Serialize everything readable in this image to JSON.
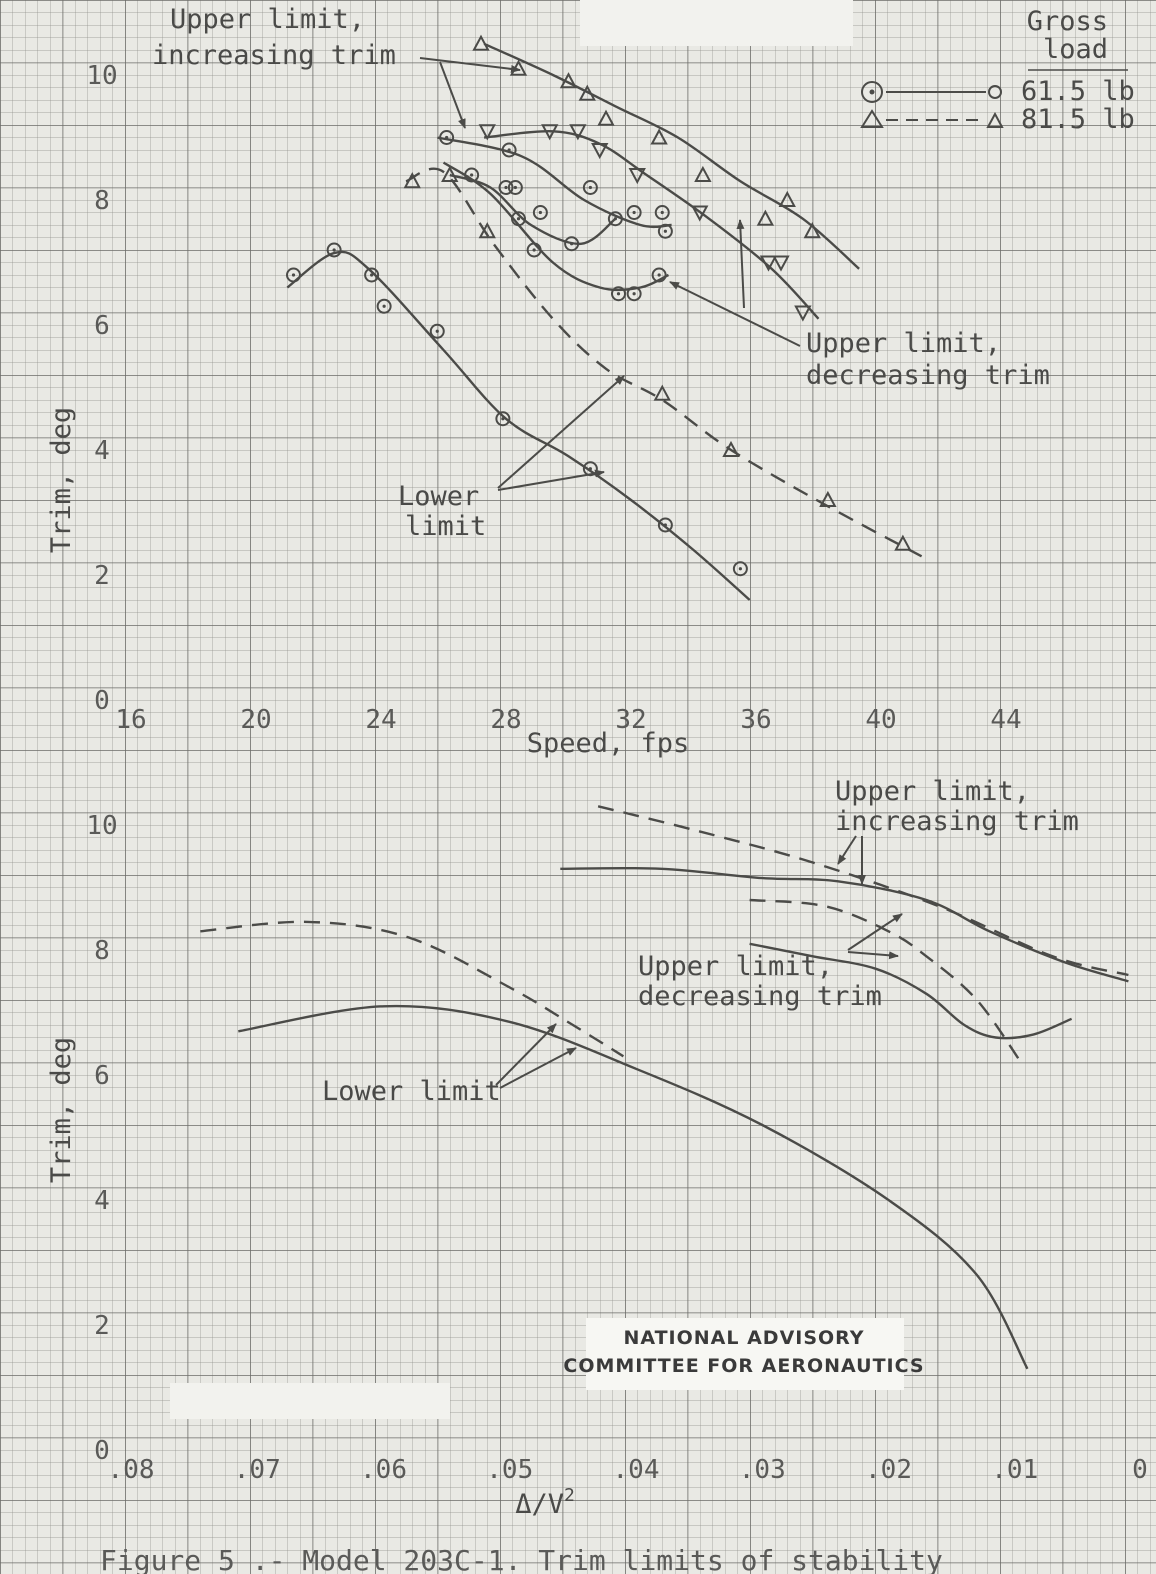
{
  "chart_data": [
    {
      "type": "scatter",
      "xlabel": "Speed, fps",
      "ylabel": "Trim, deg",
      "xlim": [
        16,
        47
      ],
      "ylim": [
        0,
        10.6
      ],
      "xticks": [
        "16",
        "20",
        "24",
        "28",
        "32",
        "36",
        "40",
        "44"
      ],
      "yticks": [
        "0",
        "2",
        "4",
        "6",
        "8",
        "10"
      ],
      "legend": {
        "title": "Gross load",
        "entries": [
          "61.5 lb",
          "81.5 lb"
        ]
      },
      "annotations": {
        "upper_inc": [
          "Upper limit,",
          "increasing trim"
        ],
        "upper_dec": [
          "Upper limit,",
          "decreasing trim"
        ],
        "lower": [
          "Lower",
          "limit"
        ]
      },
      "series": [
        {
          "marker": "circle",
          "points": [
            [
              21.2,
              6.8
            ],
            [
              22.5,
              7.2
            ],
            [
              23.7,
              6.8
            ],
            [
              24.1,
              6.3
            ],
            [
              25.8,
              5.9
            ],
            [
              27.9,
              4.5
            ],
            [
              30.7,
              3.7
            ],
            [
              33.1,
              2.8
            ],
            [
              35.5,
              2.1
            ],
            [
              26.1,
              9.0
            ],
            [
              26.9,
              8.4
            ],
            [
              28.1,
              8.8
            ],
            [
              28.0,
              8.2
            ],
            [
              28.3,
              8.2
            ],
            [
              28.4,
              7.7
            ],
            [
              29.1,
              7.8
            ],
            [
              28.9,
              7.2
            ],
            [
              30.1,
              7.3
            ],
            [
              30.7,
              8.2
            ],
            [
              31.5,
              7.7
            ],
            [
              32.1,
              7.8
            ],
            [
              31.6,
              6.5
            ],
            [
              32.1,
              6.5
            ],
            [
              33.0,
              7.8
            ],
            [
              33.1,
              7.5
            ],
            [
              32.9,
              6.8
            ]
          ]
        },
        {
          "marker": "triangle",
          "points": [
            [
              27.2,
              10.5
            ],
            [
              28.4,
              10.1
            ],
            [
              30.0,
              9.9
            ],
            [
              30.6,
              9.7
            ],
            [
              31.2,
              9.3
            ],
            [
              32.9,
              9.0
            ],
            [
              34.3,
              8.4
            ],
            [
              36.3,
              7.7
            ],
            [
              37.0,
              8.0
            ],
            [
              37.8,
              7.5
            ],
            [
              25.0,
              8.3
            ],
            [
              26.2,
              8.4
            ],
            [
              27.4,
              7.5
            ],
            [
              33.0,
              4.9
            ],
            [
              35.2,
              4.0
            ],
            [
              38.3,
              3.2
            ],
            [
              40.7,
              2.5
            ]
          ]
        },
        {
          "marker": "triangle-down",
          "points": [
            [
              27.4,
              9.1
            ],
            [
              29.4,
              9.1
            ],
            [
              30.3,
              9.1
            ],
            [
              31.0,
              8.8
            ],
            [
              32.2,
              8.4
            ],
            [
              34.2,
              7.8
            ],
            [
              36.4,
              7.0
            ],
            [
              36.8,
              7.0
            ],
            [
              37.5,
              6.2
            ]
          ]
        }
      ]
    },
    {
      "type": "line",
      "xlabel": "Δ/V²",
      "ylabel": "Trim, deg",
      "xlim": [
        0.08,
        0
      ],
      "ylim": [
        0,
        10.6
      ],
      "xticks": [
        ".08",
        ".07",
        ".06",
        ".05",
        ".04",
        ".03",
        ".02",
        ".01",
        "0"
      ],
      "yticks": [
        "0",
        "2",
        "4",
        "6",
        "8",
        "10"
      ],
      "annotations": {
        "upper_inc": [
          "Upper limit,",
          "increasing trim"
        ],
        "upper_dec": [
          "Upper limit,",
          "decreasing trim"
        ],
        "lower": "Lower limit"
      },
      "series": [
        {
          "style": "solid",
          "points": [
            [
              0.0715,
              6.7
            ],
            [
              0.06,
              7.1
            ],
            [
              0.05,
              6.85
            ],
            [
              0.04,
              6.1
            ],
            [
              0.03,
              5.2
            ],
            [
              0.02,
              4.0
            ],
            [
              0.013,
              2.8
            ],
            [
              0.009,
              1.3
            ]
          ]
        },
        {
          "style": "dashed",
          "points": [
            [
              0.0745,
              8.3
            ],
            [
              0.066,
              8.45
            ],
            [
              0.058,
              8.2
            ],
            [
              0.05,
              7.4
            ],
            [
              0.045,
              6.8
            ],
            [
              0.041,
              6.3
            ]
          ]
        },
        {
          "style": "dashed",
          "points": [
            [
              0.043,
              10.3
            ],
            [
              0.035,
              9.9
            ],
            [
              0.026,
              9.4
            ],
            [
              0.016,
              8.7
            ],
            [
              0.007,
              7.9
            ],
            [
              0.001,
              7.6
            ]
          ]
        },
        {
          "style": "solid",
          "points": [
            [
              0.046,
              9.3
            ],
            [
              0.038,
              9.3
            ],
            [
              0.03,
              9.15
            ],
            [
              0.024,
              9.1
            ],
            [
              0.017,
              8.8
            ],
            [
              0.012,
              8.3
            ],
            [
              0.006,
              7.8
            ],
            [
              0.001,
              7.5
            ]
          ]
        },
        {
          "style": "dashed",
          "points": [
            [
              0.031,
              8.8
            ],
            [
              0.025,
              8.7
            ],
            [
              0.02,
              8.3
            ],
            [
              0.017,
              7.9
            ],
            [
              0.013,
              7.2
            ],
            [
              0.0095,
              6.2
            ]
          ]
        },
        {
          "style": "solid",
          "points": [
            [
              0.031,
              8.1
            ],
            [
              0.026,
              7.9
            ],
            [
              0.021,
              7.7
            ],
            [
              0.017,
              7.3
            ],
            [
              0.014,
              6.8
            ],
            [
              0.0115,
              6.6
            ],
            [
              0.0085,
              6.65
            ],
            [
              0.0055,
              6.9
            ]
          ]
        }
      ]
    }
  ],
  "stamp": [
    "NATIONAL ADVISORY",
    "COMMITTEE FOR AERONAUTICS"
  ],
  "caption": "Figure 5 .- Model 203C-1. Trim limits of stability"
}
